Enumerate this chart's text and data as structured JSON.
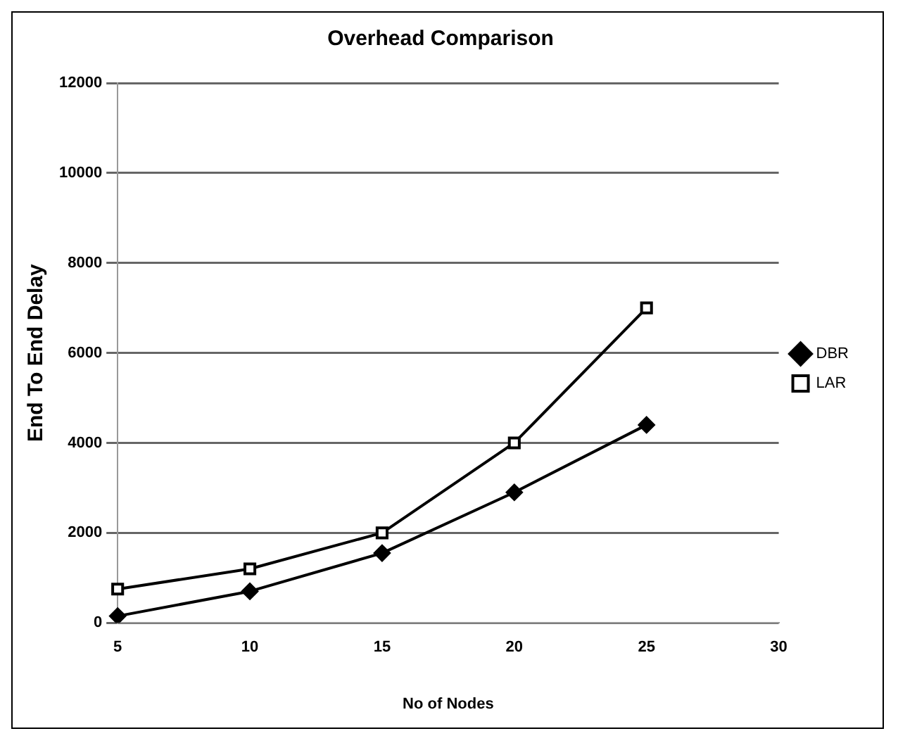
{
  "chart_data": {
    "type": "line",
    "title": "Overhead Comparison",
    "xlabel": "No of Nodes",
    "ylabel": "End To End Delay",
    "categories": [
      "5",
      "10",
      "15",
      "20",
      "25",
      "30"
    ],
    "series": [
      {
        "name": "DBR",
        "color": "#000000",
        "marker": "diamond",
        "values": [
          150,
          700,
          1550,
          2900,
          4400,
          null
        ]
      },
      {
        "name": "LAR",
        "color": "#000000",
        "marker": "square",
        "values": [
          750,
          1200,
          2000,
          4000,
          7000,
          null
        ]
      }
    ],
    "ylim": [
      0,
      12000
    ],
    "yticks": [
      0,
      2000,
      4000,
      6000,
      8000,
      10000,
      12000
    ],
    "grid": "y",
    "legend": "right"
  }
}
